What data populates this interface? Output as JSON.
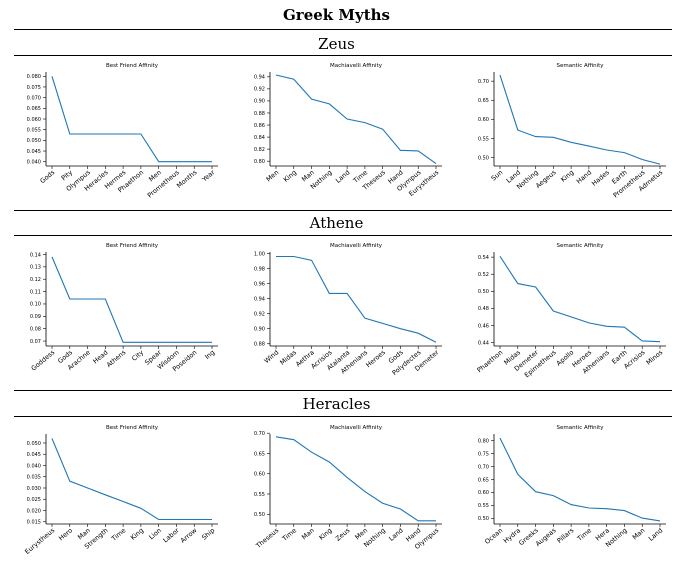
{
  "title": "Greek Myths",
  "sections": [
    {
      "name": "Zeus"
    },
    {
      "name": "Athene"
    },
    {
      "name": "Heracles"
    }
  ],
  "chart_data": [
    {
      "type": "line",
      "title": "Best Friend Affinity",
      "xlabel": "",
      "ylabel": "",
      "categories": [
        "Gods",
        "Pity",
        "Olympus",
        "Heracles",
        "Hermes",
        "Phaethon",
        "Men",
        "Prometheus",
        "Months",
        "Year"
      ],
      "values": [
        0.08,
        0.053,
        0.053,
        0.053,
        0.053,
        0.053,
        0.04,
        0.04,
        0.04,
        0.04
      ],
      "ylim": [
        0.038,
        0.082
      ],
      "yticks": [
        "0.040",
        "0.045",
        "0.050",
        "0.055",
        "0.060",
        "0.065",
        "0.070",
        "0.075",
        "0.080"
      ],
      "grid": false
    },
    {
      "type": "line",
      "title": "Machiavelli Affinity",
      "xlabel": "",
      "ylabel": "",
      "categories": [
        "Men",
        "King",
        "Man",
        "Nothing",
        "Land",
        "Time",
        "Theseus",
        "Hand",
        "Olympus",
        "Eurystheus"
      ],
      "values": [
        0.943,
        0.936,
        0.903,
        0.895,
        0.87,
        0.864,
        0.853,
        0.818,
        0.817,
        0.796
      ],
      "ylim": [
        0.792,
        0.948
      ],
      "yticks": [
        "0.80",
        "0.82",
        "0.84",
        "0.86",
        "0.88",
        "0.90",
        "0.92",
        "0.94"
      ],
      "grid": false
    },
    {
      "type": "line",
      "title": "Semantic Affinity",
      "xlabel": "",
      "ylabel": "",
      "categories": [
        "Sun",
        "Land",
        "Nothing",
        "Aegeus",
        "King",
        "Hand",
        "Hades",
        "Earth",
        "Prometheus",
        "Admetus"
      ],
      "values": [
        0.716,
        0.572,
        0.555,
        0.553,
        0.54,
        0.53,
        0.52,
        0.513,
        0.495,
        0.483
      ],
      "ylim": [
        0.478,
        0.724
      ],
      "yticks": [
        "0.50",
        "0.55",
        "0.60",
        "0.65",
        "0.70"
      ],
      "grid": false
    },
    {
      "type": "line",
      "title": "Best Friend Affinity",
      "xlabel": "",
      "ylabel": "",
      "categories": [
        "Goddess",
        "Gods",
        "Arachne",
        "Head",
        "Athens",
        "City",
        "Spear",
        "Wisdom",
        "Poseidon",
        "Ing"
      ],
      "values": [
        0.138,
        0.104,
        0.104,
        0.104,
        0.069,
        0.069,
        0.069,
        0.069,
        0.069,
        0.069
      ],
      "ylim": [
        0.066,
        0.142
      ],
      "yticks": [
        "0.07",
        "0.08",
        "0.09",
        "0.10",
        "0.11",
        "0.12",
        "0.13",
        "0.14"
      ],
      "grid": false
    },
    {
      "type": "line",
      "title": "Machiavelli Affinity",
      "xlabel": "",
      "ylabel": "",
      "categories": [
        "Wind",
        "Midas",
        "Aethra",
        "Acrisios",
        "Atalanta",
        "Athenians",
        "Heroes",
        "Gods",
        "Polydectes",
        "Demeter"
      ],
      "values": [
        0.996,
        0.996,
        0.991,
        0.947,
        0.947,
        0.914,
        0.907,
        0.9,
        0.894,
        0.882
      ],
      "ylim": [
        0.877,
        1.002
      ],
      "yticks": [
        "0.88",
        "0.90",
        "0.92",
        "0.94",
        "0.96",
        "0.98",
        "1.00"
      ],
      "grid": false
    },
    {
      "type": "line",
      "title": "Semantic Affinity",
      "xlabel": "",
      "ylabel": "",
      "categories": [
        "Phaethon",
        "Midas",
        "Demeter",
        "Epimetheus",
        "Apollo",
        "Heroes",
        "Athenians",
        "Earth",
        "Acrisios",
        "Minos"
      ],
      "values": [
        0.541,
        0.509,
        0.505,
        0.477,
        0.47,
        0.463,
        0.459,
        0.458,
        0.442,
        0.441
      ],
      "ylim": [
        0.436,
        0.546
      ],
      "yticks": [
        "0.44",
        "0.46",
        "0.48",
        "0.50",
        "0.52",
        "0.54"
      ],
      "grid": false
    },
    {
      "type": "line",
      "title": "Best Friend Affinity",
      "xlabel": "",
      "ylabel": "",
      "categories": [
        "Eurystheus",
        "Hero",
        "Man",
        "Strength",
        "Time",
        "King",
        "Lion",
        "Labor",
        "Arrow",
        "Ship"
      ],
      "values": [
        0.052,
        0.033,
        0.03,
        0.027,
        0.024,
        0.021,
        0.016,
        0.016,
        0.016,
        0.016
      ],
      "ylim": [
        0.014,
        0.054
      ],
      "yticks": [
        "0.015",
        "0.020",
        "0.025",
        "0.030",
        "0.035",
        "0.040",
        "0.045",
        "0.050"
      ],
      "grid": false
    },
    {
      "type": "line",
      "title": "Machiavelli Affinity",
      "xlabel": "",
      "ylabel": "",
      "categories": [
        "Theseus",
        "Time",
        "Man",
        "King",
        "Zeus",
        "Men",
        "Nothing",
        "Land",
        "Hand",
        "Olympus"
      ],
      "values": [
        0.691,
        0.684,
        0.653,
        0.629,
        0.591,
        0.556,
        0.527,
        0.513,
        0.484,
        0.484
      ],
      "ylim": [
        0.476,
        0.698
      ],
      "yticks": [
        "0.50",
        "0.55",
        "0.60",
        "0.65",
        "0.70"
      ],
      "grid": false
    },
    {
      "type": "line",
      "title": "Semantic Affinity",
      "xlabel": "",
      "ylabel": "",
      "categories": [
        "Ocean",
        "Hydra",
        "Greeks",
        "Augeas",
        "Pillars",
        "Time",
        "Hera",
        "Nothing",
        "Man",
        "Land"
      ],
      "values": [
        0.81,
        0.67,
        0.603,
        0.588,
        0.553,
        0.54,
        0.537,
        0.53,
        0.501,
        0.49
      ],
      "ylim": [
        0.478,
        0.826
      ],
      "yticks": [
        "0.50",
        "0.55",
        "0.60",
        "0.65",
        "0.70",
        "0.75",
        "0.80"
      ],
      "grid": false
    }
  ],
  "colors": {
    "line": "#1f77b4",
    "axis": "#000000",
    "rule": "#000000"
  }
}
